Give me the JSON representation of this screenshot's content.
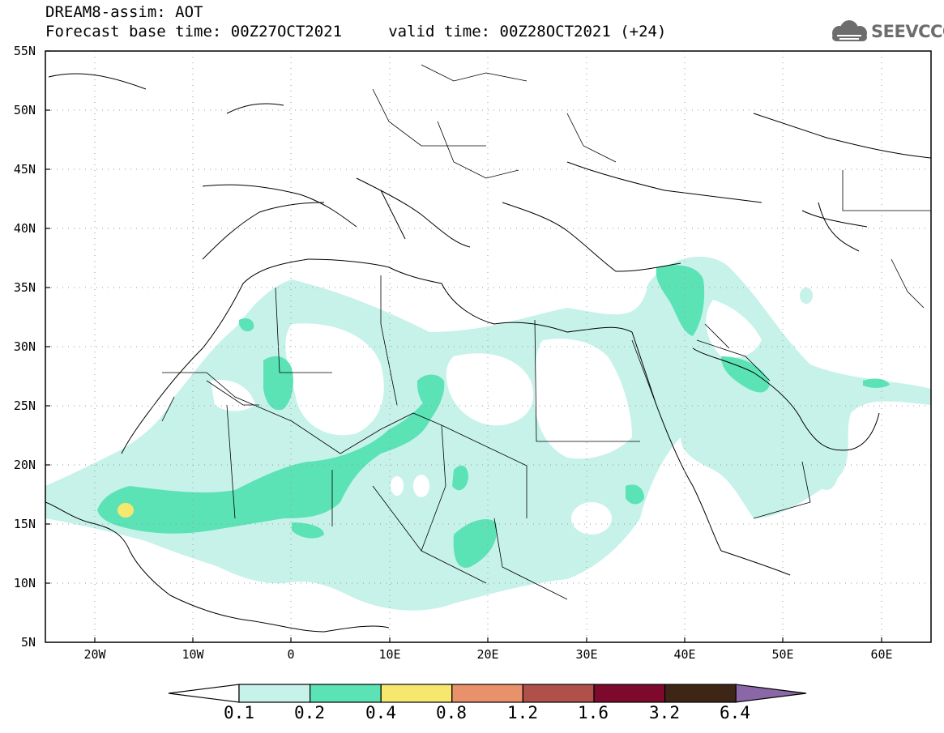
{
  "header": {
    "line1": "DREAM8-assim: AOT",
    "line2": "Forecast base time: 00Z27OCT2021     valid time: 00Z28OCT2021 (+24)"
  },
  "logo": {
    "icon": "cloud-icon",
    "text": "SEEVCCC",
    "color": "#6d6d6d"
  },
  "map": {
    "lon_range": [
      -25,
      65
    ],
    "lat_range": [
      5,
      55
    ],
    "lat_labels": [
      "55N",
      "50N",
      "45N",
      "40N",
      "35N",
      "30N",
      "25N",
      "20N",
      "15N",
      "10N",
      "5N"
    ],
    "lon_labels": [
      "20W",
      "10W",
      "0",
      "10E",
      "20E",
      "30E",
      "40E",
      "50E",
      "60E"
    ],
    "grid": "dotted"
  },
  "colorbar": {
    "labels": [
      "0.1",
      "0.2",
      "0.4",
      "0.8",
      "1.2",
      "1.6",
      "3.2",
      "6.4"
    ],
    "colors": [
      "#c6f2ea",
      "#5be3b6",
      "#f6e86f",
      "#e8916a",
      "#b0504a",
      "#7d0a2c",
      "#3d2616",
      "#8a67a6"
    ],
    "under_color": "#ffffff"
  }
}
